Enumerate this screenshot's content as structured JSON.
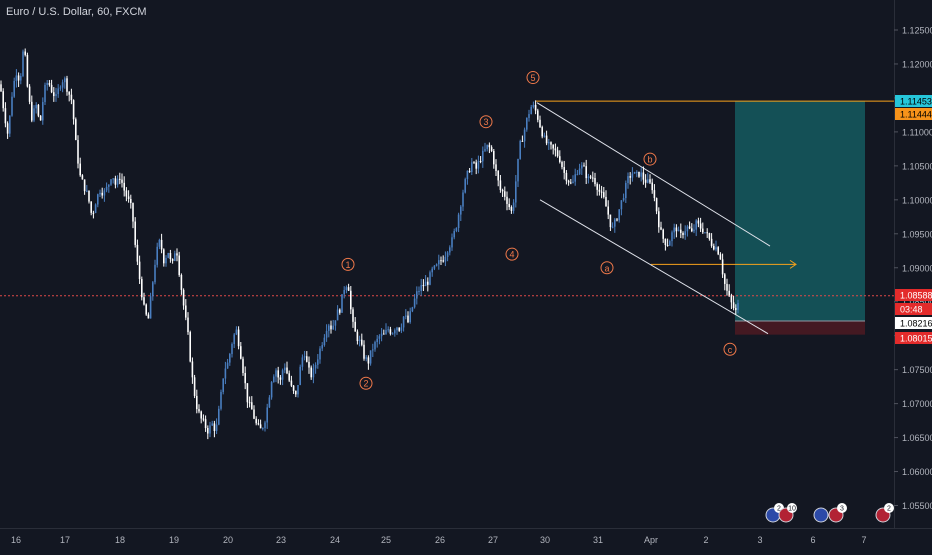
{
  "header": {
    "title": "Euro / U.S. Dollar, 60, FXCM"
  },
  "colors": {
    "background": "#131722",
    "candle_up": "#4a7fc1",
    "candle_down": "#ffffff",
    "wave_label": "#f0794a",
    "channel": "#e0e3eb",
    "target_line": "#f7a21b",
    "current_line": "#e04848",
    "profit_zone": "#155a5f",
    "loss_zone": "#4a1a22",
    "label_blue": "#26c6da",
    "label_orange": "#f7931a",
    "label_red": "#e32b2b",
    "axis_text": "#b2b5be"
  },
  "chart_data": {
    "type": "candlestick",
    "symbol": "Euro / U.S. Dollar",
    "timeframe": "60",
    "source": "FXCM",
    "ylim": [
      1.0515,
      1.1275
    ],
    "y_ticks": [
      "1.12500",
      "1.12000",
      "1.11500",
      "1.11000",
      "1.10500",
      "1.10000",
      "1.09500",
      "1.09000",
      "1.08500",
      "1.08000",
      "1.07500",
      "1.07000",
      "1.06500",
      "1.06000",
      "1.05500"
    ],
    "x_ticks": [
      "16",
      "17",
      "18",
      "19",
      "20",
      "23",
      "24",
      "25",
      "26",
      "27",
      "30",
      "31",
      "Apr",
      "2",
      "3",
      "6",
      "7"
    ],
    "price_path": [
      [
        0,
        1.117
      ],
      [
        4,
        1.113
      ],
      [
        8,
        1.1095
      ],
      [
        12,
        1.1155
      ],
      [
        16,
        1.119
      ],
      [
        20,
        1.1175
      ],
      [
        24,
        1.123
      ],
      [
        28,
        1.1155
      ],
      [
        32,
        1.112
      ],
      [
        36,
        1.114
      ],
      [
        40,
        1.111
      ],
      [
        44,
        1.116
      ],
      [
        48,
        1.1175
      ],
      [
        52,
        1.116
      ],
      [
        56,
        1.115
      ],
      [
        60,
        1.117
      ],
      [
        64,
        1.118
      ],
      [
        68,
        1.116
      ],
      [
        72,
        1.1145
      ],
      [
        76,
        1.108
      ],
      [
        80,
        1.1035
      ],
      [
        84,
        1.102
      ],
      [
        88,
        1.1005
      ],
      [
        92,
        1.0975
      ],
      [
        96,
        1.1
      ],
      [
        100,
        1.1015
      ],
      [
        104,
        1.101
      ],
      [
        108,
        1.102
      ],
      [
        112,
        1.104
      ],
      [
        116,
        1.102
      ],
      [
        120,
        1.1035
      ],
      [
        124,
        1.1015
      ],
      [
        128,
        1.1
      ],
      [
        132,
        1.0985
      ],
      [
        136,
        1.092
      ],
      [
        140,
        1.088
      ],
      [
        144,
        1.084
      ],
      [
        148,
        1.082
      ],
      [
        152,
        1.087
      ],
      [
        156,
        1.092
      ],
      [
        160,
        1.094
      ],
      [
        164,
        1.091
      ],
      [
        168,
        1.0925
      ],
      [
        172,
        1.09
      ],
      [
        176,
        1.0935
      ],
      [
        180,
        1.0885
      ],
      [
        184,
        1.084
      ],
      [
        188,
        1.08
      ],
      [
        192,
        1.074
      ],
      [
        196,
        1.07
      ],
      [
        200,
        1.068
      ],
      [
        204,
        1.067
      ],
      [
        208,
        1.066
      ],
      [
        212,
        1.067
      ],
      [
        216,
        1.066
      ],
      [
        220,
        1.07
      ],
      [
        224,
        1.075
      ],
      [
        228,
        1.076
      ],
      [
        232,
        1.079
      ],
      [
        236,
        1.081
      ],
      [
        240,
        1.078
      ],
      [
        244,
        1.074
      ],
      [
        248,
        1.07
      ],
      [
        252,
        1.069
      ],
      [
        256,
        1.067
      ],
      [
        260,
        1.066
      ],
      [
        264,
        1.067
      ],
      [
        268,
        1.07
      ],
      [
        272,
        1.074
      ],
      [
        276,
        1.075
      ],
      [
        280,
        1.073
      ],
      [
        284,
        1.076
      ],
      [
        288,
        1.074
      ],
      [
        292,
        1.072
      ],
      [
        296,
        1.071
      ],
      [
        300,
        1.075
      ],
      [
        304,
        1.078
      ],
      [
        308,
        1.075
      ],
      [
        312,
        1.074
      ],
      [
        316,
        1.076
      ],
      [
        320,
        1.078
      ],
      [
        324,
        1.08
      ],
      [
        328,
        1.082
      ],
      [
        332,
        1.081
      ],
      [
        336,
        1.083
      ],
      [
        340,
        1.084
      ],
      [
        344,
        1.087
      ],
      [
        348,
        1.088
      ],
      [
        352,
        1.082
      ],
      [
        356,
        1.08
      ],
      [
        360,
        1.079
      ],
      [
        364,
        1.077
      ],
      [
        368,
        1.076
      ],
      [
        372,
        1.078
      ],
      [
        376,
        1.079
      ],
      [
        380,
        1.08
      ],
      [
        384,
        1.08
      ],
      [
        388,
        1.081
      ],
      [
        392,
        1.0805
      ],
      [
        396,
        1.0815
      ],
      [
        400,
        1.081
      ],
      [
        404,
        1.083
      ],
      [
        408,
        1.082
      ],
      [
        412,
        1.084
      ],
      [
        416,
        1.086
      ],
      [
        420,
        1.087
      ],
      [
        424,
        1.0875
      ],
      [
        428,
        1.088
      ],
      [
        432,
        1.0895
      ],
      [
        436,
        1.09
      ],
      [
        440,
        1.091
      ],
      [
        444,
        1.0915
      ],
      [
        448,
        1.093
      ],
      [
        452,
        1.094
      ],
      [
        456,
        1.096
      ],
      [
        460,
        1.099
      ],
      [
        464,
        1.102
      ],
      [
        468,
        1.104
      ],
      [
        472,
        1.1055
      ],
      [
        476,
        1.1045
      ],
      [
        480,
        1.106
      ],
      [
        484,
        1.107
      ],
      [
        488,
        1.108
      ],
      [
        492,
        1.107
      ],
      [
        496,
        1.104
      ],
      [
        500,
        1.1015
      ],
      [
        504,
        1.101
      ],
      [
        508,
        1.0995
      ],
      [
        512,
        1.098
      ],
      [
        516,
        1.103
      ],
      [
        520,
        1.108
      ],
      [
        524,
        1.11
      ],
      [
        528,
        1.1125
      ],
      [
        532,
        1.114
      ],
      [
        536,
        1.113
      ],
      [
        540,
        1.111
      ],
      [
        544,
        1.109
      ],
      [
        548,
        1.108
      ],
      [
        552,
        1.1075
      ],
      [
        556,
        1.107
      ],
      [
        560,
        1.106
      ],
      [
        564,
        1.104
      ],
      [
        568,
        1.103
      ],
      [
        572,
        1.102
      ],
      [
        576,
        1.104
      ],
      [
        580,
        1.105
      ],
      [
        584,
        1.1045
      ],
      [
        588,
        1.103
      ],
      [
        592,
        1.1035
      ],
      [
        596,
        1.1025
      ],
      [
        600,
        1.101
      ],
      [
        604,
        1.1
      ],
      [
        608,
        1.098
      ],
      [
        612,
        1.0955
      ],
      [
        616,
        1.097
      ],
      [
        620,
        1.099
      ],
      [
        624,
        1.101
      ],
      [
        628,
        1.103
      ],
      [
        632,
        1.104
      ],
      [
        636,
        1.1035
      ],
      [
        640,
        1.104
      ],
      [
        644,
        1.103
      ],
      [
        648,
        1.1025
      ],
      [
        652,
        1.102
      ],
      [
        656,
        1.099
      ],
      [
        660,
        1.0955
      ],
      [
        664,
        1.094
      ],
      [
        668,
        1.0935
      ],
      [
        672,
        1.095
      ],
      [
        676,
        1.096
      ],
      [
        680,
        1.0945
      ],
      [
        684,
        1.0955
      ],
      [
        688,
        1.096
      ],
      [
        692,
        1.095
      ],
      [
        696,
        1.0965
      ],
      [
        700,
        1.096
      ],
      [
        704,
        1.0955
      ],
      [
        708,
        1.0945
      ],
      [
        712,
        1.0935
      ],
      [
        716,
        1.093
      ],
      [
        720,
        1.092
      ],
      [
        724,
        1.088
      ],
      [
        728,
        1.086
      ],
      [
        732,
        1.0845
      ],
      [
        736,
        1.0835
      ],
      [
        740,
        1.0855
      ]
    ],
    "wave_labels": [
      {
        "text": "1",
        "x": 348,
        "y": 1.0905
      },
      {
        "text": "2",
        "x": 366,
        "y": 1.073
      },
      {
        "text": "3",
        "x": 486,
        "y": 1.1115
      },
      {
        "text": "4",
        "x": 512,
        "y": 1.092
      },
      {
        "text": "5",
        "x": 533,
        "y": 1.118
      },
      {
        "text": "a",
        "x": 607,
        "y": 1.09
      },
      {
        "text": "b",
        "x": 650,
        "y": 1.106
      },
      {
        "text": "c",
        "x": 730,
        "y": 1.078
      }
    ],
    "price_labels": [
      {
        "text": "1.11453",
        "value": 1.11453,
        "bg": "#26c6da",
        "fg": "#000000"
      },
      {
        "text": "1.11444",
        "value": 1.11444,
        "bg": "#f7931a",
        "fg": "#000000"
      },
      {
        "text": "1.08588",
        "value": 1.08588,
        "bg": "#e32b2b",
        "fg": "#ffffff"
      },
      {
        "text": "03:48",
        "value": 1.0845,
        "bg": "#e32b2b",
        "fg": "#ffffff"
      },
      {
        "text": "1.08216",
        "value": 1.08216,
        "bg": "#ffffff",
        "fg": "#000000"
      },
      {
        "text": "1.08015",
        "value": 1.08015,
        "bg": "#e32b2b",
        "fg": "#ffffff"
      }
    ],
    "levels": {
      "target": 1.11453,
      "current": 1.08588,
      "entry": 1.08216,
      "stop": 1.08015,
      "horizontal_ray": 1.0905
    },
    "event_badges": [
      {
        "count": "2",
        "x": 773,
        "flag": "EU"
      },
      {
        "count": "10",
        "x": 786,
        "flag": "US"
      },
      {
        "count": "",
        "x": 821,
        "flag": "EU"
      },
      {
        "count": "3",
        "x": 836,
        "flag": "US"
      },
      {
        "count": "2",
        "x": 883,
        "flag": "US"
      }
    ]
  }
}
